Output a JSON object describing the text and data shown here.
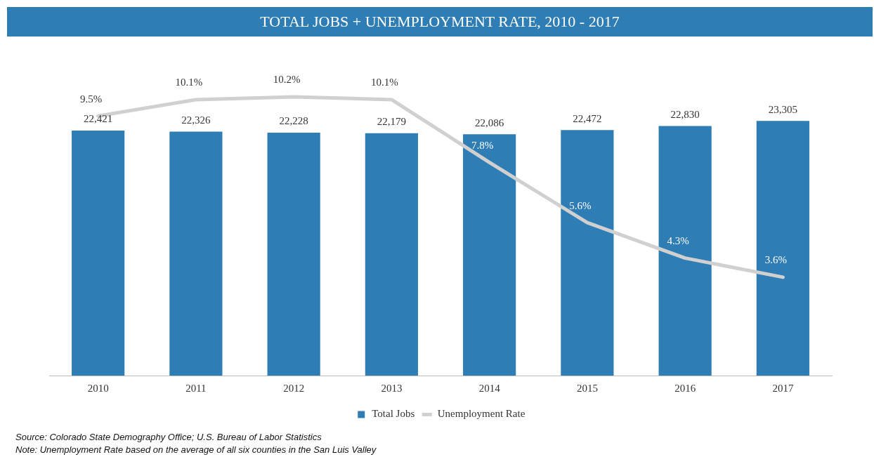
{
  "chart_data": {
    "type": "bar",
    "title": "TOTAL JOBS + UNEMPLOYMENT RATE, 2010 - 2017",
    "categories": [
      "2010",
      "2011",
      "2012",
      "2013",
      "2014",
      "2015",
      "2016",
      "2017"
    ],
    "series": [
      {
        "name": "Total Jobs",
        "type": "bar",
        "color": "#2e7db5",
        "values": [
          22421,
          22326,
          22228,
          22179,
          22086,
          22472,
          22830,
          23305
        ],
        "value_labels": [
          "22,421",
          "22,326",
          "22,228",
          "22,179",
          "22,086",
          "22,472",
          "22,830",
          "23,305"
        ]
      },
      {
        "name": "Unemployment Rate",
        "type": "line",
        "axis": "y2",
        "color": "#d0d0d0",
        "values": [
          9.5,
          10.1,
          10.2,
          10.1,
          7.8,
          5.6,
          4.3,
          3.6
        ],
        "value_labels": [
          "9.5%",
          "10.1%",
          "10.2%",
          "10.1%",
          "7.8%",
          "5.6%",
          "4.3%",
          "3.6%"
        ]
      }
    ],
    "tick_labels": "x",
    "grid": false,
    "legend": "bottom",
    "marker": "none",
    "annotations": [
      "Source: Colorado State Demography Office; U.S. Bureau of Labor Statistics",
      "Note: Unemployment Rate based on the average of all six counties in the San Luis Valley"
    ]
  }
}
